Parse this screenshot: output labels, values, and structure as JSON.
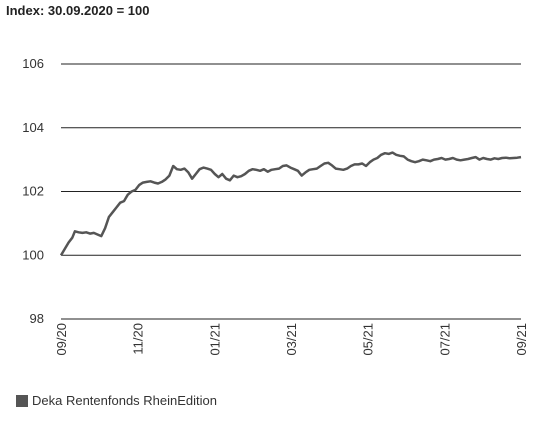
{
  "chart_data": {
    "type": "line",
    "title": "Index: 30.09.2020 = 100",
    "xlabel": "",
    "ylabel": "",
    "x_ticks": [
      "09/20",
      "11/20",
      "01/21",
      "03/21",
      "05/21",
      "07/21",
      "09/21"
    ],
    "y_ticks": [
      "98",
      "100",
      "102",
      "104",
      "106"
    ],
    "xlim": [
      "2020-09-30",
      "2021-09-30"
    ],
    "ylim": [
      98,
      106
    ],
    "grid": "horizontal",
    "legend_position": "bottom-left",
    "series": [
      {
        "name": "Deka Rentenfonds RheinEdition",
        "color": "#555555",
        "x": [
          "2020-09-30",
          "2020-10-03",
          "2020-10-06",
          "2020-10-09",
          "2020-10-11",
          "2020-10-14",
          "2020-10-17",
          "2020-10-20",
          "2020-10-23",
          "2020-10-26",
          "2020-10-29",
          "2020-11-01",
          "2020-11-04",
          "2020-11-07",
          "2020-11-10",
          "2020-11-13",
          "2020-11-16",
          "2020-11-19",
          "2020-11-22",
          "2020-11-25",
          "2020-11-28",
          "2020-12-01",
          "2020-12-04",
          "2020-12-07",
          "2020-12-10",
          "2020-12-13",
          "2020-12-16",
          "2020-12-19",
          "2020-12-22",
          "2020-12-25",
          "2020-12-28",
          "2020-12-31",
          "2021-01-03",
          "2021-01-06",
          "2021-01-09",
          "2021-01-12",
          "2021-01-15",
          "2021-01-18",
          "2021-01-21",
          "2021-01-24",
          "2021-01-27",
          "2021-01-30",
          "2021-02-02",
          "2021-02-05",
          "2021-02-08",
          "2021-02-11",
          "2021-02-14",
          "2021-02-17",
          "2021-02-20",
          "2021-02-23",
          "2021-02-26",
          "2021-03-01",
          "2021-03-04",
          "2021-03-07",
          "2021-03-10",
          "2021-03-13",
          "2021-03-16",
          "2021-03-19",
          "2021-03-22",
          "2021-03-25",
          "2021-03-28",
          "2021-03-31",
          "2021-04-03",
          "2021-04-06",
          "2021-04-09",
          "2021-04-12",
          "2021-04-15",
          "2021-04-18",
          "2021-04-21",
          "2021-04-24",
          "2021-04-27",
          "2021-04-30",
          "2021-05-03",
          "2021-05-06",
          "2021-05-09",
          "2021-05-12",
          "2021-05-15",
          "2021-05-18",
          "2021-05-21",
          "2021-05-24",
          "2021-05-27",
          "2021-05-30",
          "2021-06-02",
          "2021-06-05",
          "2021-06-08",
          "2021-06-11",
          "2021-06-14",
          "2021-06-17",
          "2021-06-20",
          "2021-06-23",
          "2021-06-26",
          "2021-06-29",
          "2021-07-02",
          "2021-07-05",
          "2021-07-08",
          "2021-07-11",
          "2021-07-14",
          "2021-07-17",
          "2021-07-20",
          "2021-07-23",
          "2021-07-26",
          "2021-07-29",
          "2021-08-01",
          "2021-08-04",
          "2021-08-07",
          "2021-08-10",
          "2021-08-13",
          "2021-08-16",
          "2021-08-19",
          "2021-08-22",
          "2021-08-25",
          "2021-08-28",
          "2021-08-31",
          "2021-09-03",
          "2021-09-06",
          "2021-09-09",
          "2021-09-12",
          "2021-09-15",
          "2021-09-18",
          "2021-09-21",
          "2021-09-24",
          "2021-09-27",
          "2021-09-30"
        ],
        "values": [
          100.0,
          100.2,
          100.4,
          100.55,
          100.75,
          100.72,
          100.7,
          100.72,
          100.68,
          100.7,
          100.65,
          100.6,
          100.85,
          101.2,
          101.35,
          101.5,
          101.65,
          101.7,
          101.9,
          102.0,
          102.05,
          102.2,
          102.28,
          102.3,
          102.32,
          102.28,
          102.25,
          102.3,
          102.38,
          102.5,
          102.8,
          102.7,
          102.68,
          102.72,
          102.6,
          102.4,
          102.55,
          102.7,
          102.75,
          102.72,
          102.68,
          102.55,
          102.45,
          102.55,
          102.4,
          102.35,
          102.5,
          102.45,
          102.48,
          102.55,
          102.65,
          102.7,
          102.68,
          102.65,
          102.7,
          102.62,
          102.68,
          102.7,
          102.72,
          102.8,
          102.82,
          102.75,
          102.7,
          102.65,
          102.5,
          102.6,
          102.68,
          102.7,
          102.72,
          102.8,
          102.88,
          102.9,
          102.82,
          102.72,
          102.7,
          102.68,
          102.72,
          102.8,
          102.85,
          102.85,
          102.88,
          102.8,
          102.92,
          103.0,
          103.05,
          103.15,
          103.2,
          103.18,
          103.22,
          103.15,
          103.12,
          103.1,
          103.0,
          102.95,
          102.92,
          102.95,
          103.0,
          102.98,
          102.95,
          103.0,
          103.02,
          103.05,
          103.0,
          103.02,
          103.05,
          103.0,
          102.98,
          103.0,
          103.02,
          103.05,
          103.08,
          103.0,
          103.05,
          103.02,
          103.0,
          103.04,
          103.02,
          103.05,
          103.06,
          103.04,
          103.05,
          103.06,
          103.08
        ]
      }
    ]
  }
}
